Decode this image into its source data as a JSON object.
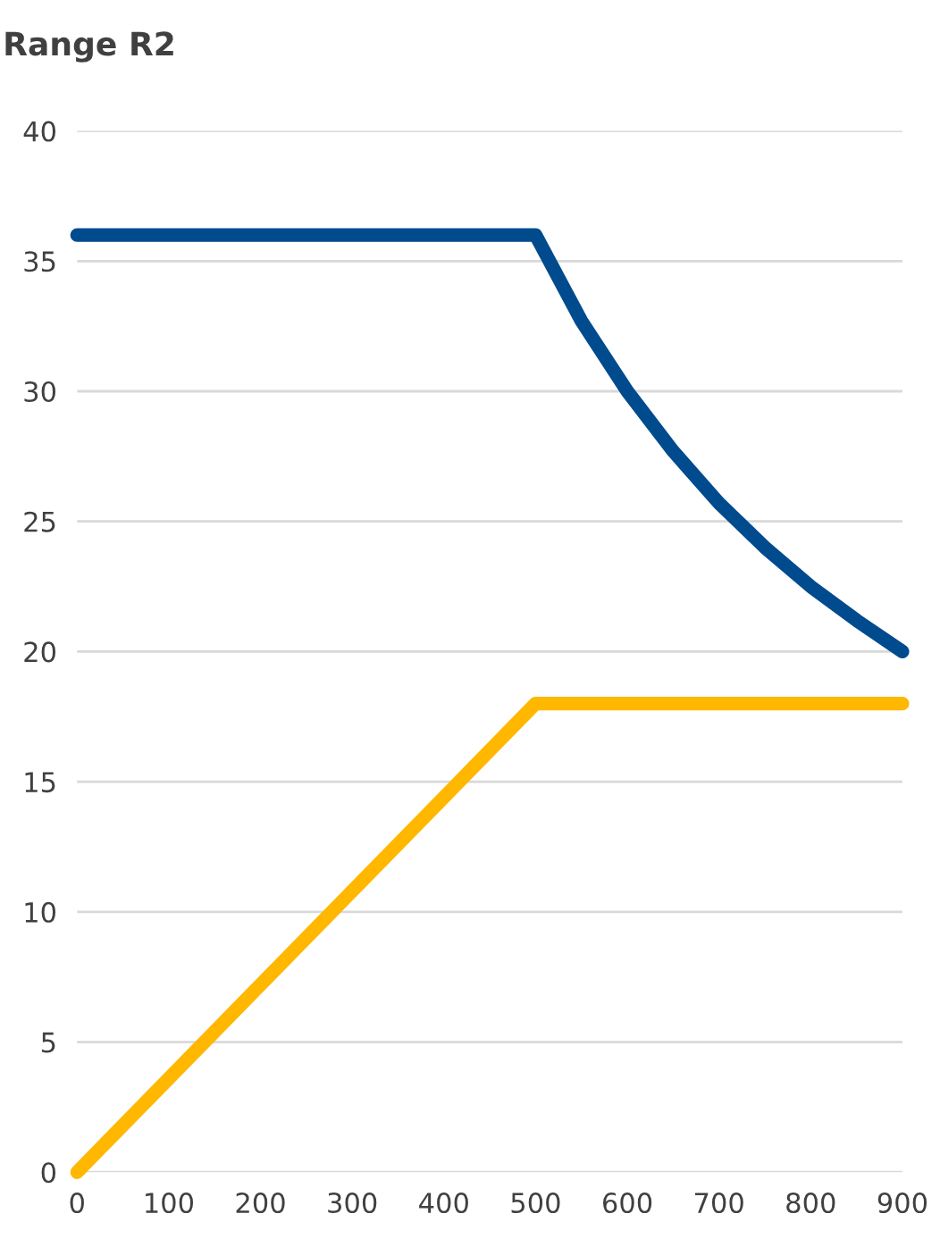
{
  "chart_data": {
    "type": "line",
    "title": "Range R2",
    "xlim": [
      0,
      900
    ],
    "xticks": [
      0,
      100,
      200,
      300,
      400,
      500,
      600,
      700,
      800,
      900
    ],
    "ylim": [
      0,
      40
    ],
    "yticks": [
      0,
      5,
      10,
      15,
      20,
      25,
      30,
      35,
      40
    ],
    "grid": "y",
    "legend": false,
    "marker": "none",
    "line_style": "solid",
    "series": [
      {
        "color": "#004b8d",
        "x": [
          0,
          500,
          550,
          600,
          650,
          700,
          750,
          800,
          850,
          900
        ],
        "values": [
          36,
          36,
          32.7,
          30,
          27.7,
          25.7,
          24,
          22.5,
          21.2,
          20
        ]
      },
      {
        "color": "#ffb700",
        "x": [
          0,
          500,
          900
        ],
        "values": [
          0,
          18,
          18
        ]
      }
    ]
  }
}
